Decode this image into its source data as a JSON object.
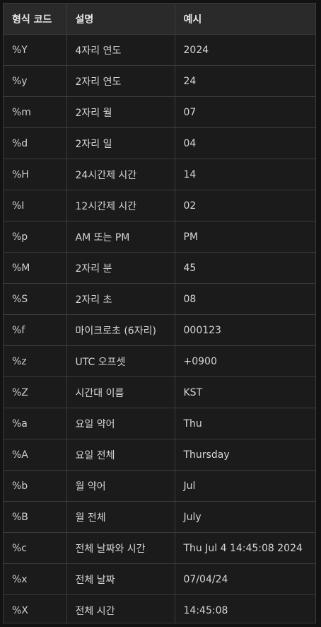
{
  "table": {
    "headers": [
      "형식 코드",
      "설명",
      "예시"
    ],
    "rows": [
      [
        "%Y",
        "4자리 연도",
        "2024"
      ],
      [
        "%y",
        "2자리 연도",
        "24"
      ],
      [
        "%m",
        "2자리 월",
        "07"
      ],
      [
        "%d",
        "2자리 일",
        "04"
      ],
      [
        "%H",
        "24시간제 시간",
        "14"
      ],
      [
        "%I",
        "12시간제 시간",
        "02"
      ],
      [
        "%p",
        "AM 또는 PM",
        "PM"
      ],
      [
        "%M",
        "2자리 분",
        "45"
      ],
      [
        "%S",
        "2자리 초",
        "08"
      ],
      [
        "%f",
        "마이크로초 (6자리)",
        "000123"
      ],
      [
        "%z",
        "UTC 오프셋",
        "+0900"
      ],
      [
        "%Z",
        "시간대 이름",
        "KST"
      ],
      [
        "%a",
        "요일 약어",
        "Thu"
      ],
      [
        "%A",
        "요일 전체",
        "Thursday"
      ],
      [
        "%b",
        "월 약어",
        "Jul"
      ],
      [
        "%B",
        "월 전체",
        "July"
      ],
      [
        "%c",
        "전체 날짜와 시간",
        "Thu Jul 4 14:45:08 2024"
      ],
      [
        "%x",
        "전체 날짜",
        "07/04/24"
      ],
      [
        "%X",
        "전체 시간",
        "14:45:08"
      ]
    ]
  },
  "colors": {
    "background": "#1b1b1b",
    "header_background": "#2a2a2a",
    "border": "#3b3b3b",
    "text": "#d6d6d6"
  }
}
